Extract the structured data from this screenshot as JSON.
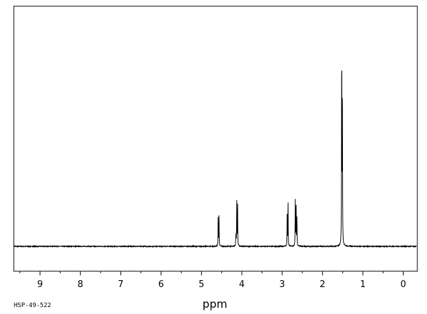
{
  "chart_data": {
    "type": "line",
    "xlabel": "ppm",
    "sample_id": "HSP-49-522",
    "xlim": [
      9.65,
      -0.35
    ],
    "ylim": [
      0,
      1
    ],
    "x_ticks": [
      9,
      8,
      7,
      6,
      5,
      4,
      3,
      2,
      1,
      0
    ],
    "x_tick_labels": [
      "9",
      "8",
      "7",
      "6",
      "5",
      "4",
      "3",
      "2",
      "1",
      "0"
    ],
    "series": [
      {
        "peaks": [
          {
            "ppm": 4.585,
            "height": 0.135
          },
          {
            "ppm": 4.565,
            "height": 0.135
          },
          {
            "ppm": 4.125,
            "height": 0.2
          },
          {
            "ppm": 4.105,
            "height": 0.2
          },
          {
            "ppm": 4.145,
            "height": 0.06
          },
          {
            "ppm": 2.875,
            "height": 0.14
          },
          {
            "ppm": 2.855,
            "height": 0.205
          },
          {
            "ppm": 2.675,
            "height": 0.205
          },
          {
            "ppm": 2.655,
            "height": 0.2
          },
          {
            "ppm": 2.635,
            "height": 0.14
          },
          {
            "ppm": 1.525,
            "height": 0.955
          },
          {
            "ppm": 1.508,
            "height": 0.77
          }
        ]
      }
    ]
  }
}
